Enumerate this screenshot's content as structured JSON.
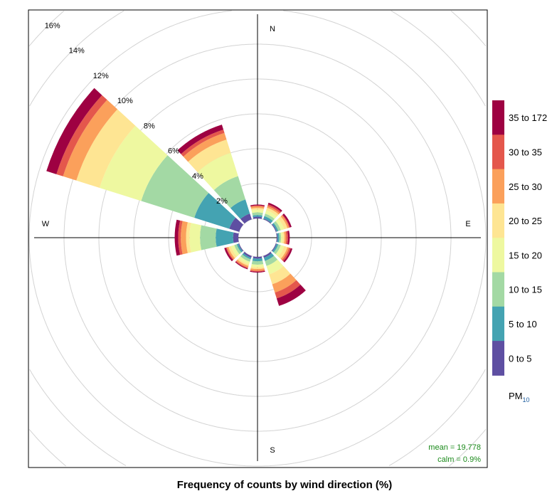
{
  "chart_data": {
    "type": "wind-rose",
    "title": "Frequency of counts by wind direction (%)",
    "compass": {
      "N": "N",
      "E": "E",
      "S": "S",
      "W": "W"
    },
    "ring_values": [
      2,
      4,
      6,
      8,
      10,
      12,
      14,
      16
    ],
    "ring_labels": [
      "2%",
      "4%",
      "6%",
      "8%",
      "10%",
      "12%",
      "14%",
      "16%"
    ],
    "rmax": 18,
    "legend_title": "PM",
    "legend_subscript": "10",
    "bins": [
      "0 to 5",
      "5 to 10",
      "10 to 15",
      "15 to 20",
      "20 to 25",
      "25 to 30",
      "30 to 35",
      "35 to 172"
    ],
    "colors": [
      "#5E4FA2",
      "#44A3B2",
      "#A3D9A4",
      "#EEF8A0",
      "#FEE593",
      "#FBA05B",
      "#E4574C",
      "#9E0142"
    ],
    "directions": [
      0,
      30,
      60,
      90,
      120,
      150,
      180,
      210,
      240,
      270,
      300,
      330
    ],
    "frequencies": [
      [
        0.1,
        0.1,
        0.15,
        0.15,
        0.1,
        0.1,
        0.05,
        0.05
      ],
      [
        0.05,
        0.15,
        0.15,
        0.2,
        0.15,
        0.1,
        0.1,
        0.1
      ],
      [
        0.05,
        0.1,
        0.15,
        0.2,
        0.2,
        0.1,
        0.05,
        0.1
      ],
      [
        0.05,
        0.1,
        0.1,
        0.1,
        0.1,
        0.1,
        0.1,
        0.1
      ],
      [
        0.05,
        0.1,
        0.15,
        0.2,
        0.2,
        0.1,
        0.1,
        0.1
      ],
      [
        0.1,
        0.2,
        0.3,
        0.5,
        0.6,
        0.5,
        0.35,
        0.45
      ],
      [
        0.1,
        0.15,
        0.2,
        0.15,
        0.1,
        0.1,
        0.05,
        0.05
      ],
      [
        0.1,
        0.1,
        0.15,
        0.15,
        0.1,
        0.1,
        0.05,
        0.05
      ],
      [
        0.05,
        0.1,
        0.15,
        0.2,
        0.15,
        0.1,
        0.05,
        0.1
      ],
      [
        0.3,
        1.0,
        0.9,
        0.6,
        0.2,
        0.3,
        0.15,
        0.2
      ],
      [
        0.6,
        2.1,
        3.2,
        2.5,
        1.4,
        0.8,
        0.4,
        0.6
      ],
      [
        0.35,
        0.85,
        1.4,
        1.4,
        0.8,
        0.4,
        0.2,
        0.3
      ]
    ],
    "stats": {
      "mean": "mean = 19.778",
      "calm": "calm = 0.9%"
    }
  }
}
